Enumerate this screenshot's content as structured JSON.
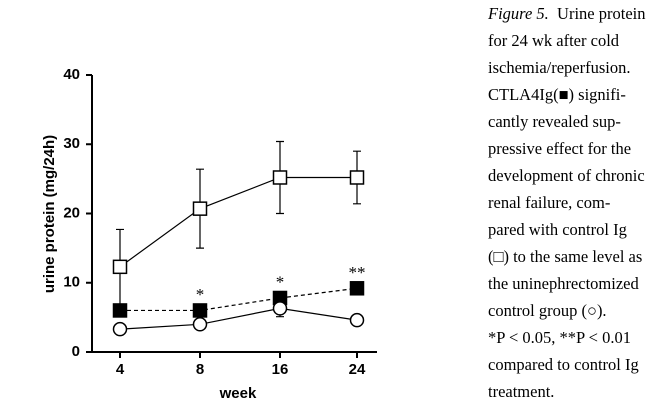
{
  "chart_data": {
    "type": "line",
    "y_label": "urine protein (mg/24h)",
    "x_label": "week",
    "categories": [
      "4",
      "8",
      "16",
      "24"
    ],
    "ylim": [
      0,
      40
    ],
    "yticks": [
      0,
      10,
      20,
      30,
      40
    ],
    "series": [
      {
        "color": "#000000",
        "marker": "square",
        "marker_fill": "#ffffff",
        "dashed": false,
        "values": [
          12.3,
          20.7,
          25.2,
          25.2
        ],
        "errors": [
          5.4,
          5.7,
          5.2,
          3.8
        ]
      },
      {
        "color": "#000000",
        "marker": "square",
        "marker_fill": "#000000",
        "dashed": true,
        "values": [
          6.0,
          6.0,
          7.8,
          9.2
        ],
        "errors": [
          0.8,
          0.6,
          0.6,
          0.6
        ]
      },
      {
        "color": "#000000",
        "marker": "circle",
        "marker_fill": "#ffffff",
        "dashed": false,
        "values": [
          3.3,
          4.0,
          6.3,
          4.6
        ],
        "errors": [
          0.8,
          0.5,
          1.2,
          0.8
        ]
      }
    ],
    "annotations": [
      {
        "text": "*",
        "category": "8",
        "series": 1
      },
      {
        "text": "*",
        "category": "16",
        "series": 1
      },
      {
        "text": "**",
        "category": "24",
        "series": 1
      }
    ]
  },
  "caption": {
    "label": "Figure 5.",
    "lines": [
      "Urine protein",
      "for 24 wk after cold",
      "ischemia/reperfusion.",
      "CTLA4Ig(■) signifi-",
      "cantly revealed sup-",
      "pressive effect for the",
      "development of chronic",
      "renal failure, com-",
      "pared with control Ig",
      "(□) to the same level as",
      "the uninephrectomized",
      "control group (○).",
      "*P < 0.05, **P < 0.01",
      "compared to control Ig",
      "treatment."
    ]
  }
}
